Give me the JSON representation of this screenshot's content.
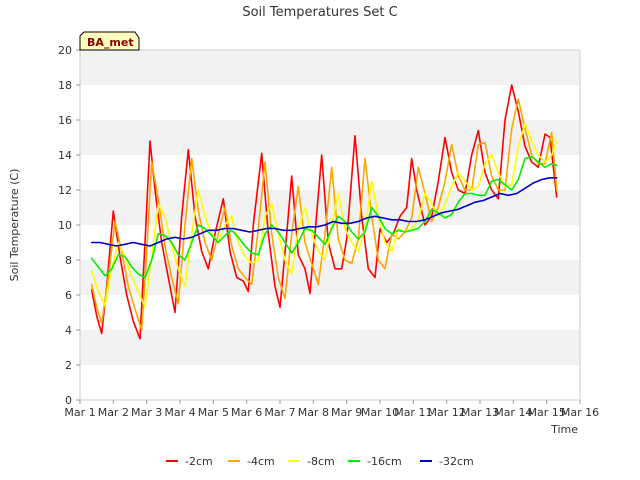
{
  "chart_data": {
    "type": "line",
    "title": "Soil Temperatures Set C",
    "xlabel": "Time",
    "ylabel": "Soil Temperature (C)",
    "badge": "BA_met",
    "ylim": [
      0,
      20
    ],
    "yticks": [
      0,
      2,
      4,
      6,
      8,
      10,
      12,
      14,
      16,
      18,
      20
    ],
    "xlim": [
      1,
      16
    ],
    "xticks": [
      {
        "day": 1,
        "label": "Mar 1"
      },
      {
        "day": 2,
        "label": "Mar 2"
      },
      {
        "day": 3,
        "label": "Mar 3"
      },
      {
        "day": 4,
        "label": "Mar 4"
      },
      {
        "day": 5,
        "label": "Mar 5"
      },
      {
        "day": 6,
        "label": "Mar 6"
      },
      {
        "day": 7,
        "label": "Mar 7"
      },
      {
        "day": 8,
        "label": "Mar 8"
      },
      {
        "day": 9,
        "label": "Mar 9"
      },
      {
        "day": 10,
        "label": "Mar 10"
      },
      {
        "day": 11,
        "label": "Mar 11"
      },
      {
        "day": 12,
        "label": "Mar 12"
      },
      {
        "day": 13,
        "label": "Mar 13"
      },
      {
        "day": 14,
        "label": "Mar 14"
      },
      {
        "day": 15,
        "label": "Mar 15"
      },
      {
        "day": 16,
        "label": "Mar 16"
      }
    ],
    "grid": "horizontal bands",
    "legend_position": "bottom",
    "series": [
      {
        "name": "-2cm",
        "color": "#ff0000",
        "x": [
          1.35,
          1.5,
          1.65,
          1.8,
          2.0,
          2.2,
          2.4,
          2.6,
          2.8,
          2.95,
          3.1,
          3.25,
          3.45,
          3.65,
          3.85,
          4.05,
          4.25,
          4.45,
          4.65,
          4.85,
          5.05,
          5.3,
          5.5,
          5.7,
          5.9,
          6.05,
          6.2,
          6.45,
          6.65,
          6.85,
          7.0,
          7.2,
          7.35,
          7.55,
          7.75,
          7.9,
          8.05,
          8.25,
          8.45,
          8.65,
          8.85,
          9.0,
          9.1,
          9.25,
          9.45,
          9.65,
          9.85,
          10.0,
          10.2,
          10.4,
          10.6,
          10.8,
          10.95,
          11.1,
          11.35,
          11.55,
          11.75,
          11.95,
          12.15,
          12.35,
          12.55,
          12.75,
          12.95,
          13.15,
          13.35,
          13.55,
          13.75,
          13.95,
          14.15,
          14.35,
          14.55,
          14.75,
          14.95,
          15.1,
          15.3
        ],
        "y": [
          6.3,
          4.8,
          3.8,
          6.5,
          10.8,
          8.2,
          6.0,
          4.5,
          3.5,
          9.0,
          14.8,
          12.0,
          9.0,
          7.0,
          5.0,
          10.5,
          14.3,
          10.5,
          8.5,
          7.5,
          9.5,
          11.5,
          8.5,
          7.0,
          6.8,
          6.2,
          10.0,
          14.1,
          9.5,
          6.5,
          5.3,
          9.5,
          12.8,
          8.3,
          7.5,
          6.1,
          9.5,
          14.0,
          9.0,
          7.5,
          7.5,
          9.2,
          11.5,
          15.1,
          10.5,
          7.5,
          7.0,
          9.8,
          9.0,
          9.5,
          10.5,
          11.0,
          13.8,
          12.0,
          10.0,
          10.5,
          12.5,
          15.0,
          13.0,
          12.0,
          11.8,
          14.0,
          15.4,
          13.0,
          12.0,
          11.5,
          16.0,
          18.0,
          16.5,
          14.5,
          13.6,
          13.3,
          15.2,
          15.0,
          11.6
        ]
      },
      {
        "name": "-4cm",
        "color": "#ffa500",
        "x": [
          1.35,
          1.5,
          1.65,
          1.85,
          2.05,
          2.25,
          2.45,
          2.65,
          2.85,
          3.0,
          3.15,
          3.35,
          3.55,
          3.75,
          3.95,
          4.15,
          4.35,
          4.55,
          4.75,
          4.95,
          5.15,
          5.35,
          5.55,
          5.75,
          5.95,
          6.15,
          6.35,
          6.55,
          6.75,
          6.95,
          7.15,
          7.35,
          7.55,
          7.75,
          7.95,
          8.15,
          8.35,
          8.55,
          8.75,
          8.95,
          9.15,
          9.35,
          9.55,
          9.75,
          9.95,
          10.15,
          10.35,
          10.55,
          10.75,
          10.95,
          11.15,
          11.35,
          11.55,
          11.75,
          11.95,
          12.15,
          12.35,
          12.55,
          12.75,
          12.95,
          13.15,
          13.35,
          13.55,
          13.75,
          13.95,
          14.15,
          14.35,
          14.55,
          14.75,
          14.95,
          15.15,
          15.3
        ],
        "y": [
          6.6,
          5.3,
          4.4,
          7.0,
          10.2,
          8.5,
          6.5,
          5.2,
          4.0,
          8.5,
          13.6,
          11.5,
          8.8,
          7.0,
          5.5,
          10.0,
          13.8,
          10.8,
          9.0,
          8.0,
          9.5,
          11.0,
          8.8,
          7.5,
          7.0,
          6.6,
          9.8,
          13.6,
          9.5,
          7.0,
          5.8,
          9.5,
          12.2,
          9.0,
          7.8,
          6.6,
          9.5,
          13.3,
          9.2,
          8.0,
          7.8,
          9.2,
          13.8,
          10.5,
          8.0,
          7.5,
          9.5,
          9.2,
          9.6,
          10.4,
          13.3,
          11.8,
          10.2,
          11.0,
          12.5,
          14.6,
          12.8,
          12.0,
          12.0,
          14.6,
          14.7,
          12.8,
          12.0,
          12.0,
          15.5,
          17.2,
          15.5,
          14.0,
          13.5,
          13.5,
          15.3,
          12.0
        ]
      },
      {
        "name": "-8cm",
        "color": "#ffff00",
        "x": [
          1.35,
          1.55,
          1.75,
          1.95,
          2.15,
          2.35,
          2.55,
          2.75,
          2.95,
          3.15,
          3.35,
          3.55,
          3.75,
          3.95,
          4.15,
          4.35,
          4.55,
          4.75,
          4.95,
          5.15,
          5.35,
          5.55,
          5.75,
          5.95,
          6.15,
          6.35,
          6.55,
          6.75,
          6.95,
          7.15,
          7.35,
          7.55,
          7.75,
          7.95,
          8.15,
          8.35,
          8.55,
          8.75,
          8.95,
          9.15,
          9.35,
          9.55,
          9.75,
          9.95,
          10.15,
          10.35,
          10.55,
          10.75,
          10.95,
          11.15,
          11.35,
          11.55,
          11.75,
          11.95,
          12.15,
          12.35,
          12.55,
          12.75,
          12.95,
          13.15,
          13.35,
          13.55,
          13.75,
          13.95,
          14.15,
          14.35,
          14.55,
          14.75,
          14.95,
          15.15,
          15.3
        ],
        "y": [
          7.4,
          6.2,
          5.4,
          7.5,
          9.0,
          8.2,
          7.0,
          6.2,
          5.3,
          8.2,
          11.2,
          10.5,
          8.8,
          7.5,
          6.5,
          9.5,
          12.0,
          10.5,
          9.5,
          9.0,
          10.0,
          10.5,
          9.0,
          8.2,
          7.8,
          8.0,
          10.5,
          11.2,
          9.5,
          8.0,
          7.2,
          9.8,
          11.0,
          9.5,
          8.5,
          8.0,
          10.0,
          11.8,
          9.8,
          9.0,
          8.5,
          9.8,
          12.5,
          10.5,
          9.0,
          8.5,
          9.8,
          9.6,
          9.8,
          10.3,
          11.8,
          11.2,
          10.5,
          11.2,
          12.2,
          13.0,
          12.5,
          12.0,
          12.2,
          13.5,
          14.0,
          13.0,
          12.2,
          12.3,
          14.5,
          15.8,
          14.8,
          14.0,
          13.6,
          14.0,
          14.8
        ]
      },
      {
        "name": "-16cm",
        "color": "#00ee00",
        "x": [
          1.35,
          1.55,
          1.75,
          1.95,
          2.15,
          2.35,
          2.55,
          2.75,
          2.95,
          3.15,
          3.35,
          3.55,
          3.75,
          3.95,
          4.15,
          4.35,
          4.55,
          4.75,
          4.95,
          5.15,
          5.35,
          5.55,
          5.75,
          5.95,
          6.15,
          6.35,
          6.55,
          6.75,
          6.95,
          7.15,
          7.35,
          7.55,
          7.75,
          7.95,
          8.15,
          8.35,
          8.55,
          8.75,
          8.95,
          9.15,
          9.35,
          9.55,
          9.75,
          9.95,
          10.15,
          10.35,
          10.55,
          10.75,
          10.95,
          11.15,
          11.35,
          11.55,
          11.75,
          11.95,
          12.15,
          12.35,
          12.55,
          12.75,
          12.95,
          13.15,
          13.35,
          13.55,
          13.75,
          13.95,
          14.15,
          14.35,
          14.55,
          14.75,
          14.95,
          15.15,
          15.3
        ],
        "y": [
          8.1,
          7.6,
          7.1,
          7.5,
          8.3,
          8.2,
          7.6,
          7.2,
          7.0,
          8.0,
          9.5,
          9.4,
          9.0,
          8.3,
          8.0,
          9.0,
          10.0,
          9.8,
          9.4,
          9.0,
          9.4,
          9.7,
          9.3,
          8.8,
          8.4,
          8.3,
          9.5,
          10.0,
          9.6,
          9.0,
          8.4,
          9.0,
          9.8,
          9.7,
          9.3,
          8.9,
          9.8,
          10.5,
          10.2,
          9.6,
          9.2,
          9.6,
          11.0,
          10.5,
          9.8,
          9.5,
          9.7,
          9.6,
          9.7,
          9.8,
          10.2,
          10.9,
          10.7,
          10.4,
          10.6,
          11.3,
          11.8,
          11.8,
          11.7,
          11.7,
          12.5,
          12.6,
          12.3,
          12.0,
          12.6,
          13.8,
          13.9,
          13.6,
          13.3,
          13.5,
          13.4
        ]
      },
      {
        "name": "-32cm",
        "color": "#0000cc",
        "x": [
          1.35,
          1.6,
          1.85,
          2.1,
          2.35,
          2.6,
          2.85,
          3.1,
          3.35,
          3.6,
          3.85,
          4.1,
          4.35,
          4.6,
          4.85,
          5.1,
          5.35,
          5.6,
          5.85,
          6.1,
          6.35,
          6.6,
          6.85,
          7.1,
          7.35,
          7.6,
          7.85,
          8.1,
          8.35,
          8.6,
          8.85,
          9.1,
          9.35,
          9.6,
          9.85,
          10.1,
          10.35,
          10.6,
          10.85,
          11.1,
          11.35,
          11.6,
          11.85,
          12.1,
          12.35,
          12.6,
          12.85,
          13.1,
          13.35,
          13.6,
          13.85,
          14.1,
          14.35,
          14.6,
          14.85,
          15.1,
          15.3
        ],
        "y": [
          9.0,
          9.0,
          8.9,
          8.8,
          8.9,
          9.0,
          8.9,
          8.8,
          9.0,
          9.2,
          9.3,
          9.2,
          9.3,
          9.5,
          9.7,
          9.7,
          9.8,
          9.8,
          9.7,
          9.6,
          9.7,
          9.8,
          9.8,
          9.7,
          9.7,
          9.8,
          9.9,
          9.9,
          10.0,
          10.2,
          10.1,
          10.1,
          10.2,
          10.4,
          10.5,
          10.4,
          10.3,
          10.3,
          10.2,
          10.2,
          10.3,
          10.5,
          10.7,
          10.8,
          10.9,
          11.1,
          11.3,
          11.4,
          11.6,
          11.8,
          11.7,
          11.8,
          12.1,
          12.4,
          12.6,
          12.7,
          12.7
        ]
      }
    ]
  }
}
